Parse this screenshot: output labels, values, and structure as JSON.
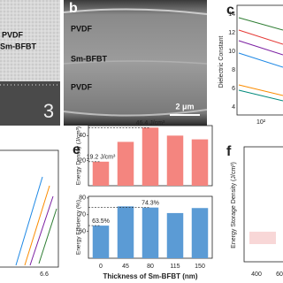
{
  "panel_labels": [
    "b",
    "c",
    "e",
    "f"
  ],
  "image_a": {
    "labels": [
      "PVDF",
      "Sm-BFBT"
    ],
    "scale": "3"
  },
  "image_b": {
    "labels": [
      "PVDF",
      "Sm-BFBT",
      "PVDF"
    ],
    "scale_bar": "2 μm"
  },
  "panel_c": {
    "y_label": "Dielectric Constant",
    "yticks": [
      "14",
      "12",
      "10",
      "8",
      "6",
      "4"
    ],
    "xtick": "10²"
  },
  "panel_d": {
    "xtick": "6.6"
  },
  "panel_f": {
    "y_label": "Energy Storage Density (J/cm³)",
    "xticks": [
      "400",
      "60"
    ]
  },
  "chart_data": [
    {
      "type": "bar",
      "y_label": "Energy Density (J/cm³)",
      "values": [
        19.2,
        35,
        46.4,
        40,
        37
      ],
      "value_labels": [
        "19.2 J/cm³",
        null,
        "46.4 J/cm³",
        null,
        null
      ],
      "color": "#f4857f",
      "ylim": [
        0,
        48
      ],
      "yticks": [
        20,
        40
      ]
    },
    {
      "type": "bar",
      "y_label": "Energy Efficiency (%)",
      "x_label": "Thickness of Sm-BFBT (nm)",
      "categories": [
        "0",
        "45",
        "80",
        "115",
        "150"
      ],
      "values": [
        63.5,
        75,
        74.3,
        71,
        74
      ],
      "value_labels": [
        "63.5%",
        null,
        "74.3%",
        null,
        null
      ],
      "color": "#5b9bd5",
      "ylim": [
        44,
        81
      ],
      "yticks": [
        60,
        70,
        80
      ]
    }
  ]
}
